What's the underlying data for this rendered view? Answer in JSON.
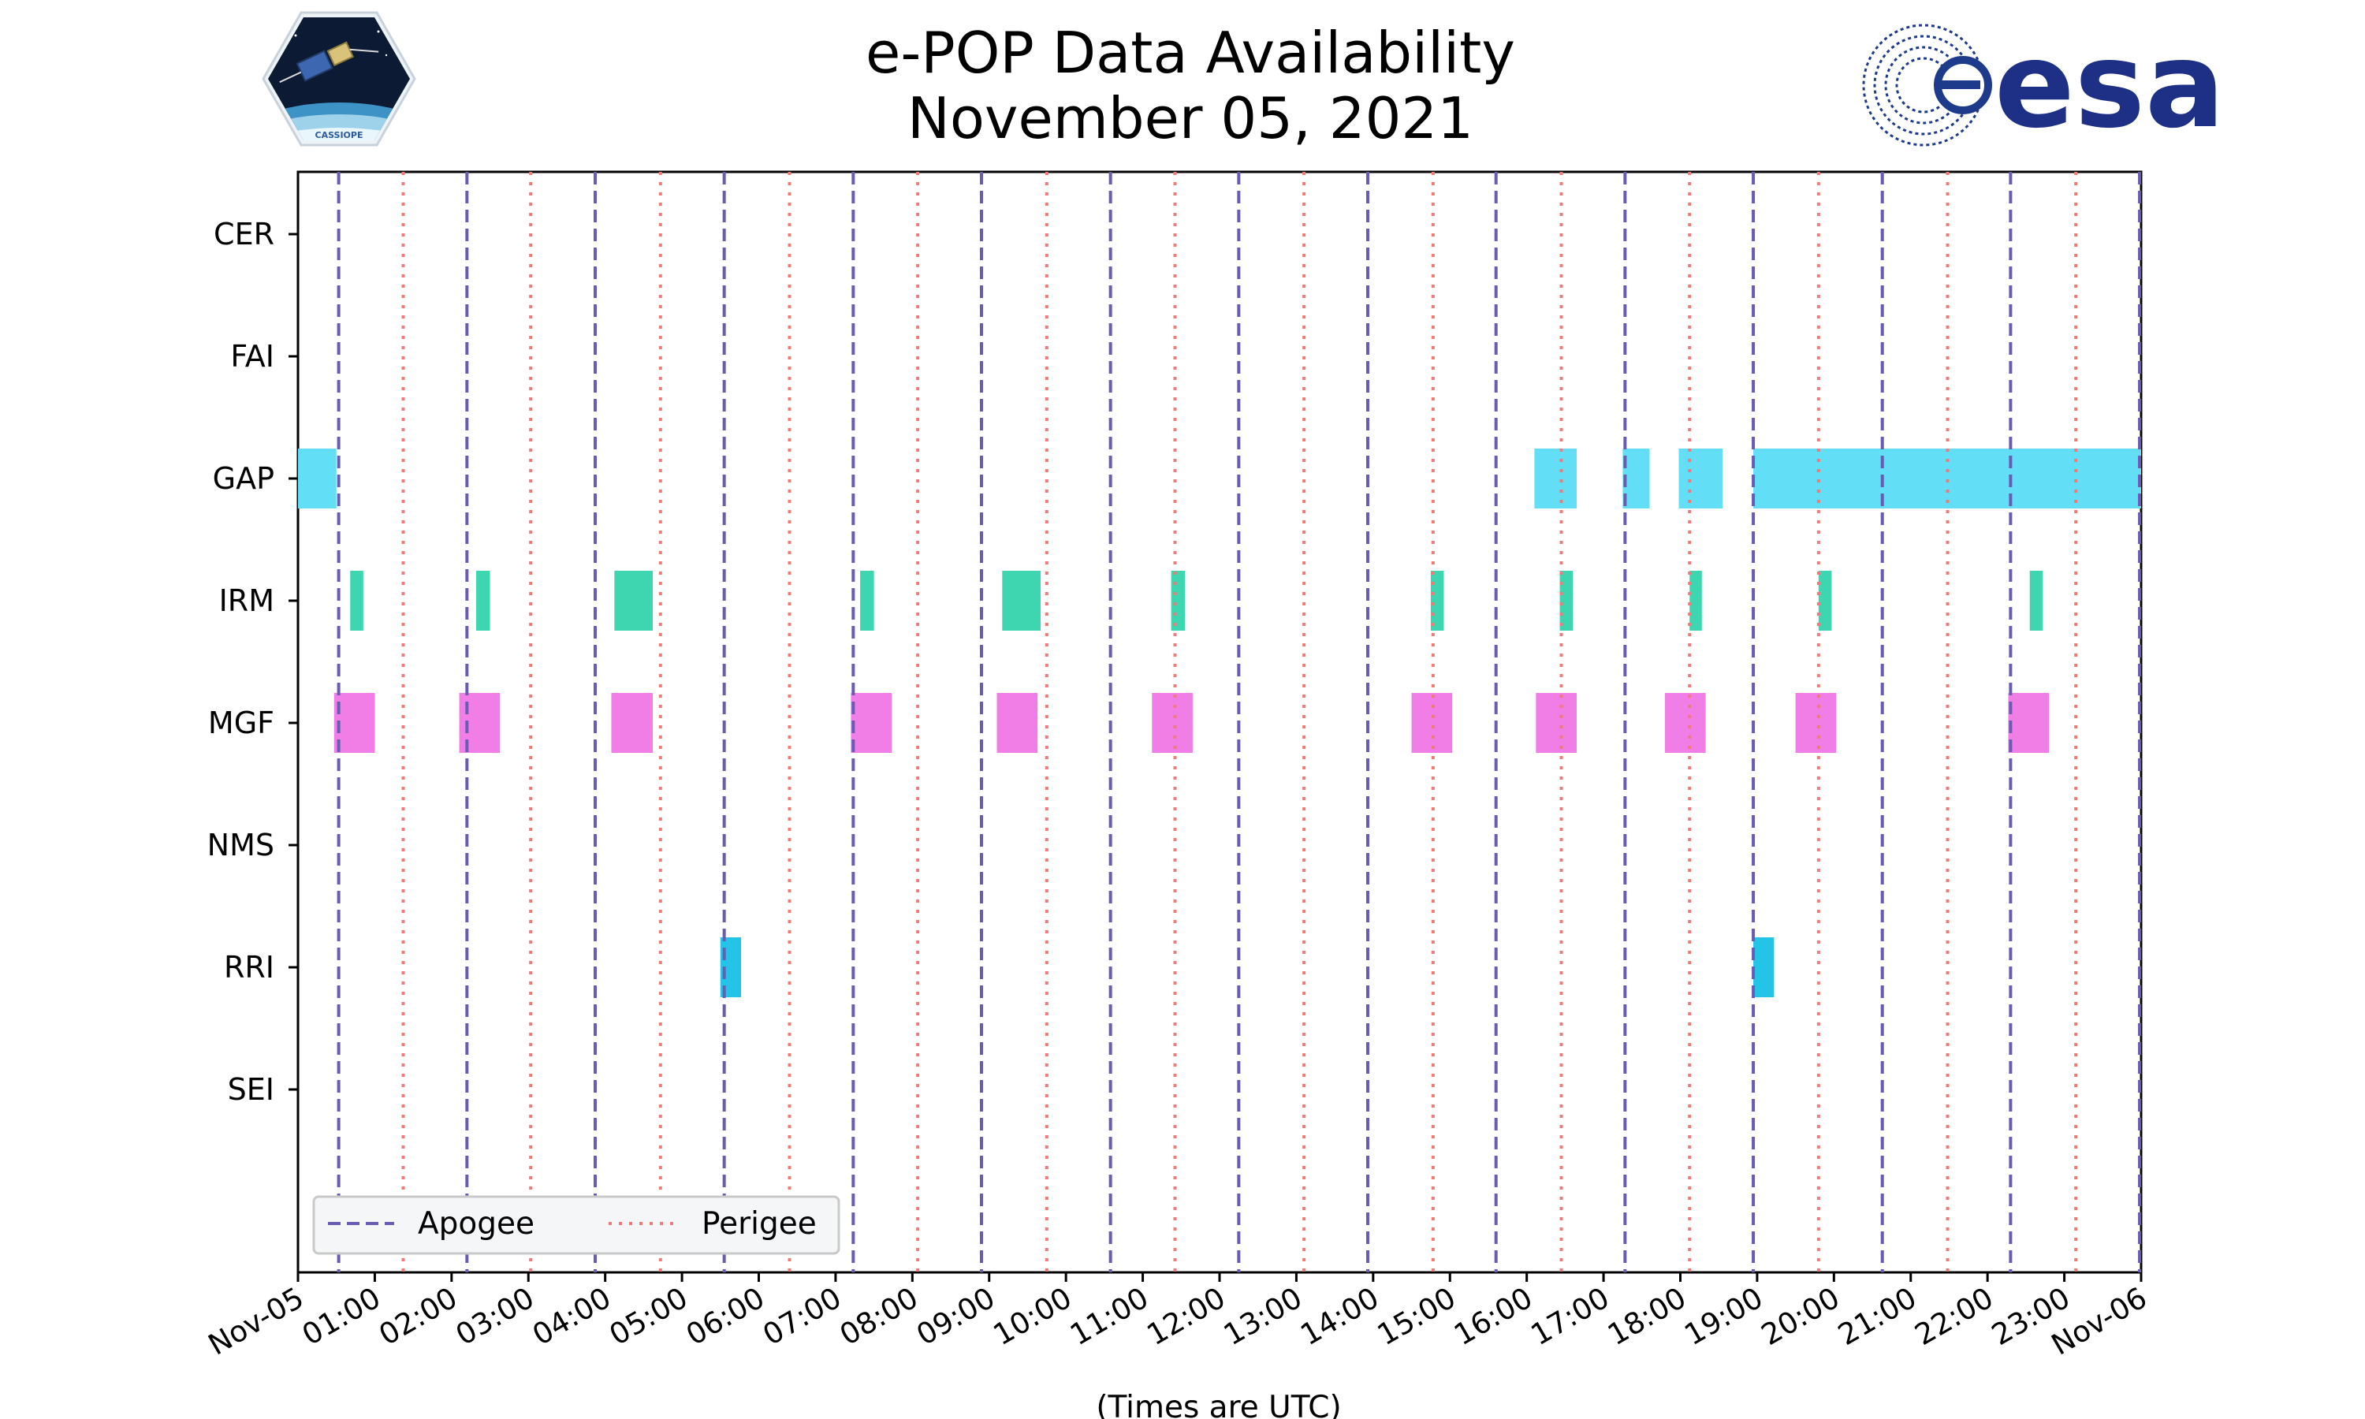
{
  "chart_data": {
    "type": "timeline",
    "title": "e-POP Data Availability",
    "subtitle": "November 05, 2021",
    "xlabel": "(Times are UTC)",
    "xlim_hours": [
      0,
      24
    ],
    "x_tick_labels": [
      "Nov-05",
      "01:00",
      "02:00",
      "03:00",
      "04:00",
      "05:00",
      "06:00",
      "07:00",
      "08:00",
      "09:00",
      "10:00",
      "11:00",
      "12:00",
      "13:00",
      "14:00",
      "15:00",
      "16:00",
      "17:00",
      "18:00",
      "19:00",
      "20:00",
      "21:00",
      "22:00",
      "23:00",
      "Nov-06"
    ],
    "instruments": [
      "CER",
      "FAI",
      "GAP",
      "IRM",
      "MGF",
      "NMS",
      "RRI",
      "SEI"
    ],
    "colors": {
      "GAP": "#62def7",
      "IRM": "#3dd6b0",
      "MGF": "#f07ee6",
      "RRI": "#24c3e8",
      "apogee": "#6a5bb3",
      "perigee": "#f07a7a"
    },
    "availability": {
      "CER": [],
      "FAI": [],
      "GAP": [
        [
          0.0,
          0.5
        ],
        [
          16.1,
          16.65
        ],
        [
          17.25,
          17.6
        ],
        [
          17.98,
          18.55
        ],
        [
          18.95,
          24.0
        ]
      ],
      "IRM": [
        [
          0.68,
          0.85
        ],
        [
          2.32,
          2.5
        ],
        [
          4.12,
          4.62
        ],
        [
          7.32,
          7.5
        ],
        [
          9.17,
          9.67
        ],
        [
          11.37,
          11.55
        ],
        [
          14.75,
          14.92
        ],
        [
          16.43,
          16.6
        ],
        [
          18.12,
          18.28
        ],
        [
          19.8,
          19.97
        ],
        [
          22.55,
          22.72
        ]
      ],
      "MGF": [
        [
          0.47,
          1.0
        ],
        [
          2.1,
          2.63
        ],
        [
          4.08,
          4.62
        ],
        [
          7.2,
          7.73
        ],
        [
          9.1,
          9.63
        ],
        [
          11.12,
          11.65
        ],
        [
          14.5,
          15.03
        ],
        [
          16.12,
          16.65
        ],
        [
          17.8,
          18.33
        ],
        [
          19.5,
          20.03
        ],
        [
          22.27,
          22.8
        ]
      ],
      "NMS": [],
      "RRI": [
        [
          5.5,
          5.77
        ],
        [
          18.95,
          19.22
        ]
      ],
      "SEI": []
    },
    "apogee_hours": [
      0.53,
      2.2,
      3.87,
      5.55,
      7.23,
      8.9,
      10.58,
      12.25,
      13.93,
      15.6,
      17.28,
      18.95,
      20.63,
      22.3,
      23.98
    ],
    "perigee_hours": [
      1.37,
      3.03,
      4.72,
      6.4,
      8.07,
      9.75,
      11.42,
      13.1,
      14.78,
      16.45,
      18.12,
      19.8,
      21.48,
      23.15
    ],
    "legend": {
      "position": "lower-left",
      "entries": [
        {
          "label": "Apogee",
          "style": "dashed"
        },
        {
          "label": "Perigee",
          "style": "dotted"
        }
      ]
    }
  },
  "logos": {
    "left": {
      "name": "CASSIOPE",
      "text": "CASSIOPE"
    },
    "right": {
      "name": "esa",
      "text": "esa"
    }
  }
}
